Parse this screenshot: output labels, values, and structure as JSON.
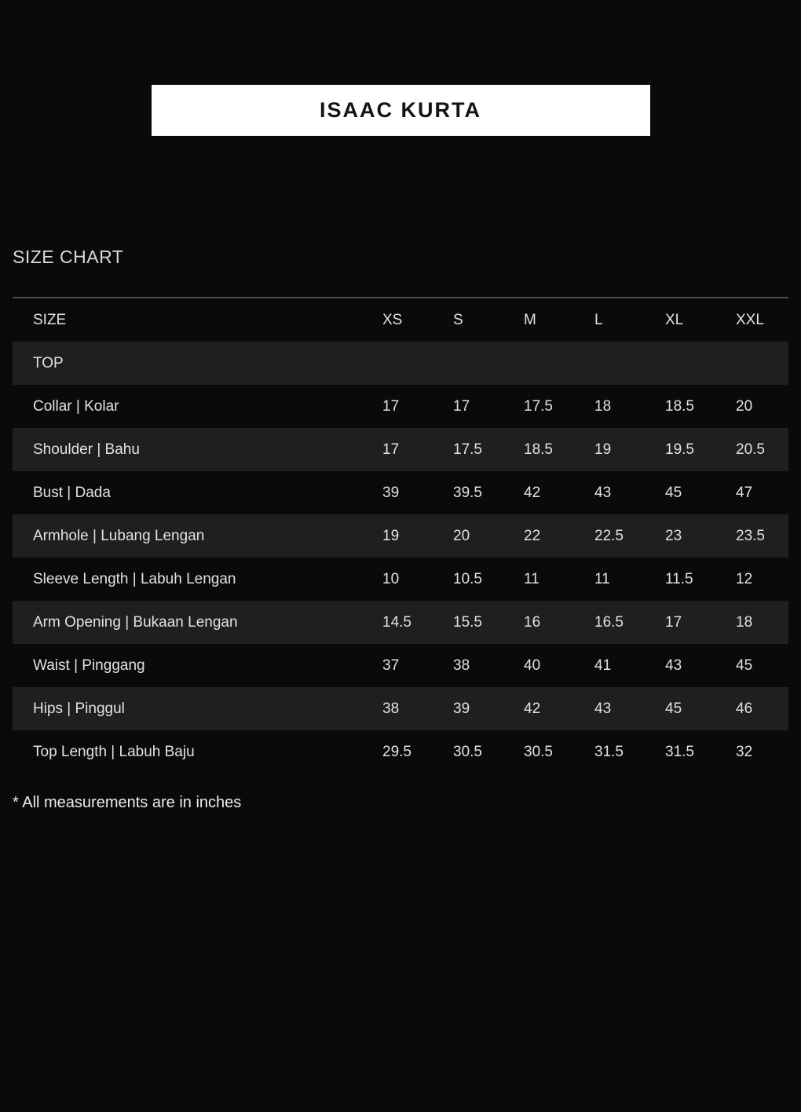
{
  "page": {
    "title_banner": "ISAAC KURTA",
    "section_heading": "SIZE CHART",
    "footnote": "* All measurements are in inches"
  },
  "table": {
    "size_label": "SIZE",
    "sizes": [
      "XS",
      "S",
      "M",
      "L",
      "XL",
      "XXL"
    ],
    "group_label": "TOP",
    "rows": [
      {
        "label": "Collar | Kolar",
        "values": [
          "17",
          "17",
          "17.5",
          "18",
          "18.5",
          "20"
        ]
      },
      {
        "label": "Shoulder | Bahu",
        "values": [
          "17",
          "17.5",
          "18.5",
          "19",
          "19.5",
          "20.5"
        ]
      },
      {
        "label": "Bust | Dada",
        "values": [
          "39",
          "39.5",
          "42",
          "43",
          "45",
          "47"
        ]
      },
      {
        "label": "Armhole | Lubang Lengan",
        "values": [
          "19",
          "20",
          "22",
          "22.5",
          "23",
          "23.5"
        ]
      },
      {
        "label": "Sleeve Length | Labuh Lengan",
        "values": [
          "10",
          "10.5",
          "11",
          "11",
          "11.5",
          "12"
        ]
      },
      {
        "label": "Arm Opening | Bukaan Lengan",
        "values": [
          "14.5",
          "15.5",
          "16",
          "16.5",
          "17",
          "18"
        ]
      },
      {
        "label": "Waist | Pinggang",
        "values": [
          "37",
          "38",
          "40",
          "41",
          "43",
          "45"
        ]
      },
      {
        "label": "Hips | Pinggul",
        "values": [
          "38",
          "39",
          "42",
          "43",
          "45",
          "46"
        ]
      },
      {
        "label": "Top Length | Labuh Baju",
        "values": [
          "29.5",
          "30.5",
          "30.5",
          "31.5",
          "31.5",
          "32"
        ]
      }
    ]
  },
  "colors": {
    "background": "#0a0a0a",
    "row_alt": "#1f1f1f",
    "text": "#e2e2e2",
    "banner_bg": "#ffffff",
    "banner_text": "#141414",
    "divider": "#4d4d4d"
  }
}
